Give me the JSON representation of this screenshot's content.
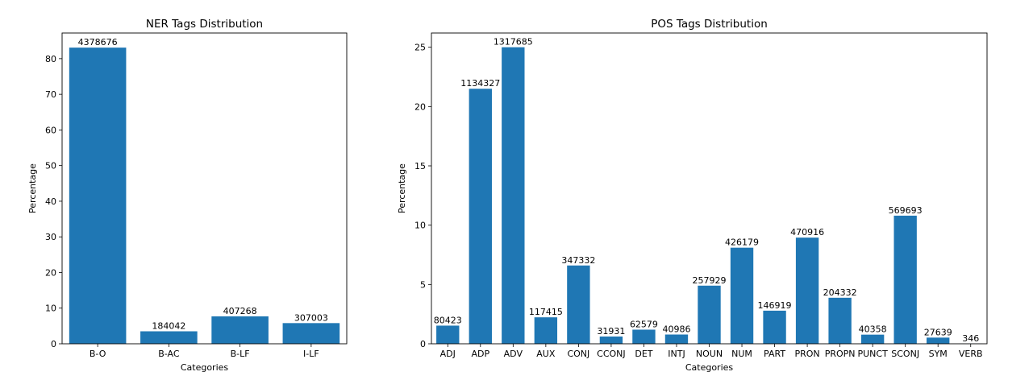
{
  "chart_data": [
    {
      "type": "bar",
      "title": "NER Tags Distribution",
      "xlabel": "Categories",
      "ylabel": "Percentage",
      "categories": [
        "B-O",
        "B-AC",
        "B-LF",
        "I-LF"
      ],
      "values": [
        83.1,
        3.5,
        7.7,
        5.8
      ],
      "data_labels": [
        "4378676",
        "184042",
        "407268",
        "307003"
      ],
      "ylim": [
        0,
        87.2
      ],
      "yticks": [
        0,
        10,
        20,
        30,
        40,
        50,
        60,
        70,
        80
      ],
      "grid": false,
      "color": "#1f77b4"
    },
    {
      "type": "bar",
      "title": "POS Tags Distribution",
      "xlabel": "Categories",
      "ylabel": "Percentage",
      "categories": [
        "ADJ",
        "ADP",
        "ADV",
        "AUX",
        "CONJ",
        "CCONJ",
        "DET",
        "INTJ",
        "NOUN",
        "NUM",
        "PART",
        "PRON",
        "PROPN",
        "PUNCT",
        "SCONJ",
        "SYM",
        "VERB"
      ],
      "values": [
        1.53,
        21.5,
        25.0,
        2.23,
        6.6,
        0.61,
        1.19,
        0.78,
        4.9,
        8.1,
        2.79,
        8.95,
        3.88,
        0.77,
        10.8,
        0.52,
        0.01
      ],
      "data_labels": [
        "80423",
        "1134327",
        "1317685",
        "117415",
        "347332",
        "31931",
        "62579",
        "40986",
        "257929",
        "426179",
        "146919",
        "470916",
        "204332",
        "40358",
        "569693",
        "27639",
        "346"
      ],
      "ylim": [
        0,
        26.2
      ],
      "yticks": [
        0,
        5,
        10,
        15,
        20,
        25
      ],
      "grid": false,
      "color": "#1f77b4"
    }
  ]
}
